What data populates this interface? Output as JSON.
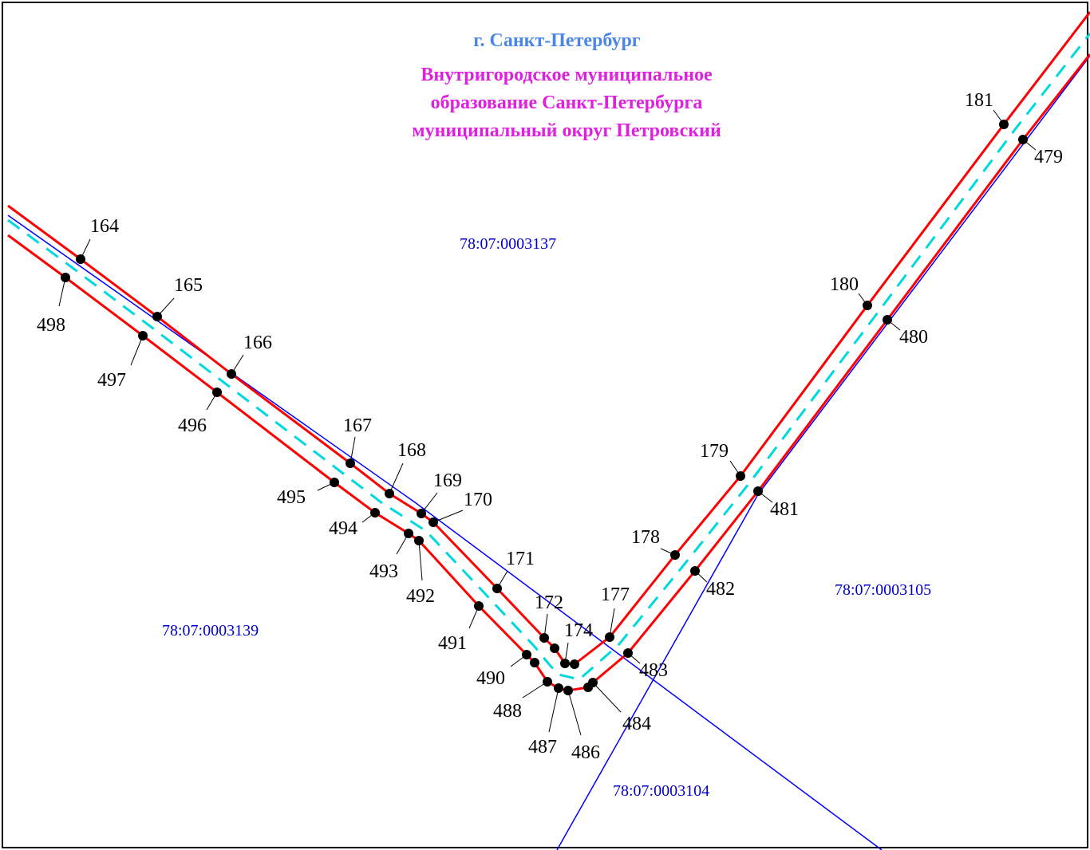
{
  "header": {
    "city": "г. Санкт-Петербург",
    "mo_line1": "Внутригородское муниципальное",
    "mo_line2": "образование Санкт-Петербурга",
    "mo_line3": "муниципальный округ Петровский"
  },
  "quarters": {
    "q3137": "78:07:0003137",
    "q3139": "78:07:0003139",
    "q3105": "78:07:0003105",
    "q3104": "78:07:0003104"
  },
  "colors": {
    "boundary": "#ff0000",
    "axis": "#00d8e0",
    "quarter_line": "#0000ff",
    "point": "#000000",
    "city_text": "#4a86e8",
    "mo_text": "#e020e0",
    "quarter_text": "#0000cc"
  },
  "points": {
    "p164": "164",
    "p165": "165",
    "p166": "166",
    "p167": "167",
    "p168": "168",
    "p169": "169",
    "p170": "170",
    "p171": "171",
    "p172": "172",
    "p174": "174",
    "p177": "177",
    "p178": "178",
    "p179": "179",
    "p180": "180",
    "p181": "181",
    "p479": "479",
    "p480": "480",
    "p481": "481",
    "p482": "482",
    "p483": "483",
    "p484": "484",
    "p486": "486",
    "p487": "487",
    "p488": "488",
    "p490": "490",
    "p491": "491",
    "p492": "492",
    "p493": "493",
    "p494": "494",
    "p495": "495",
    "p496": "496",
    "p497": "497",
    "p498": "498"
  }
}
